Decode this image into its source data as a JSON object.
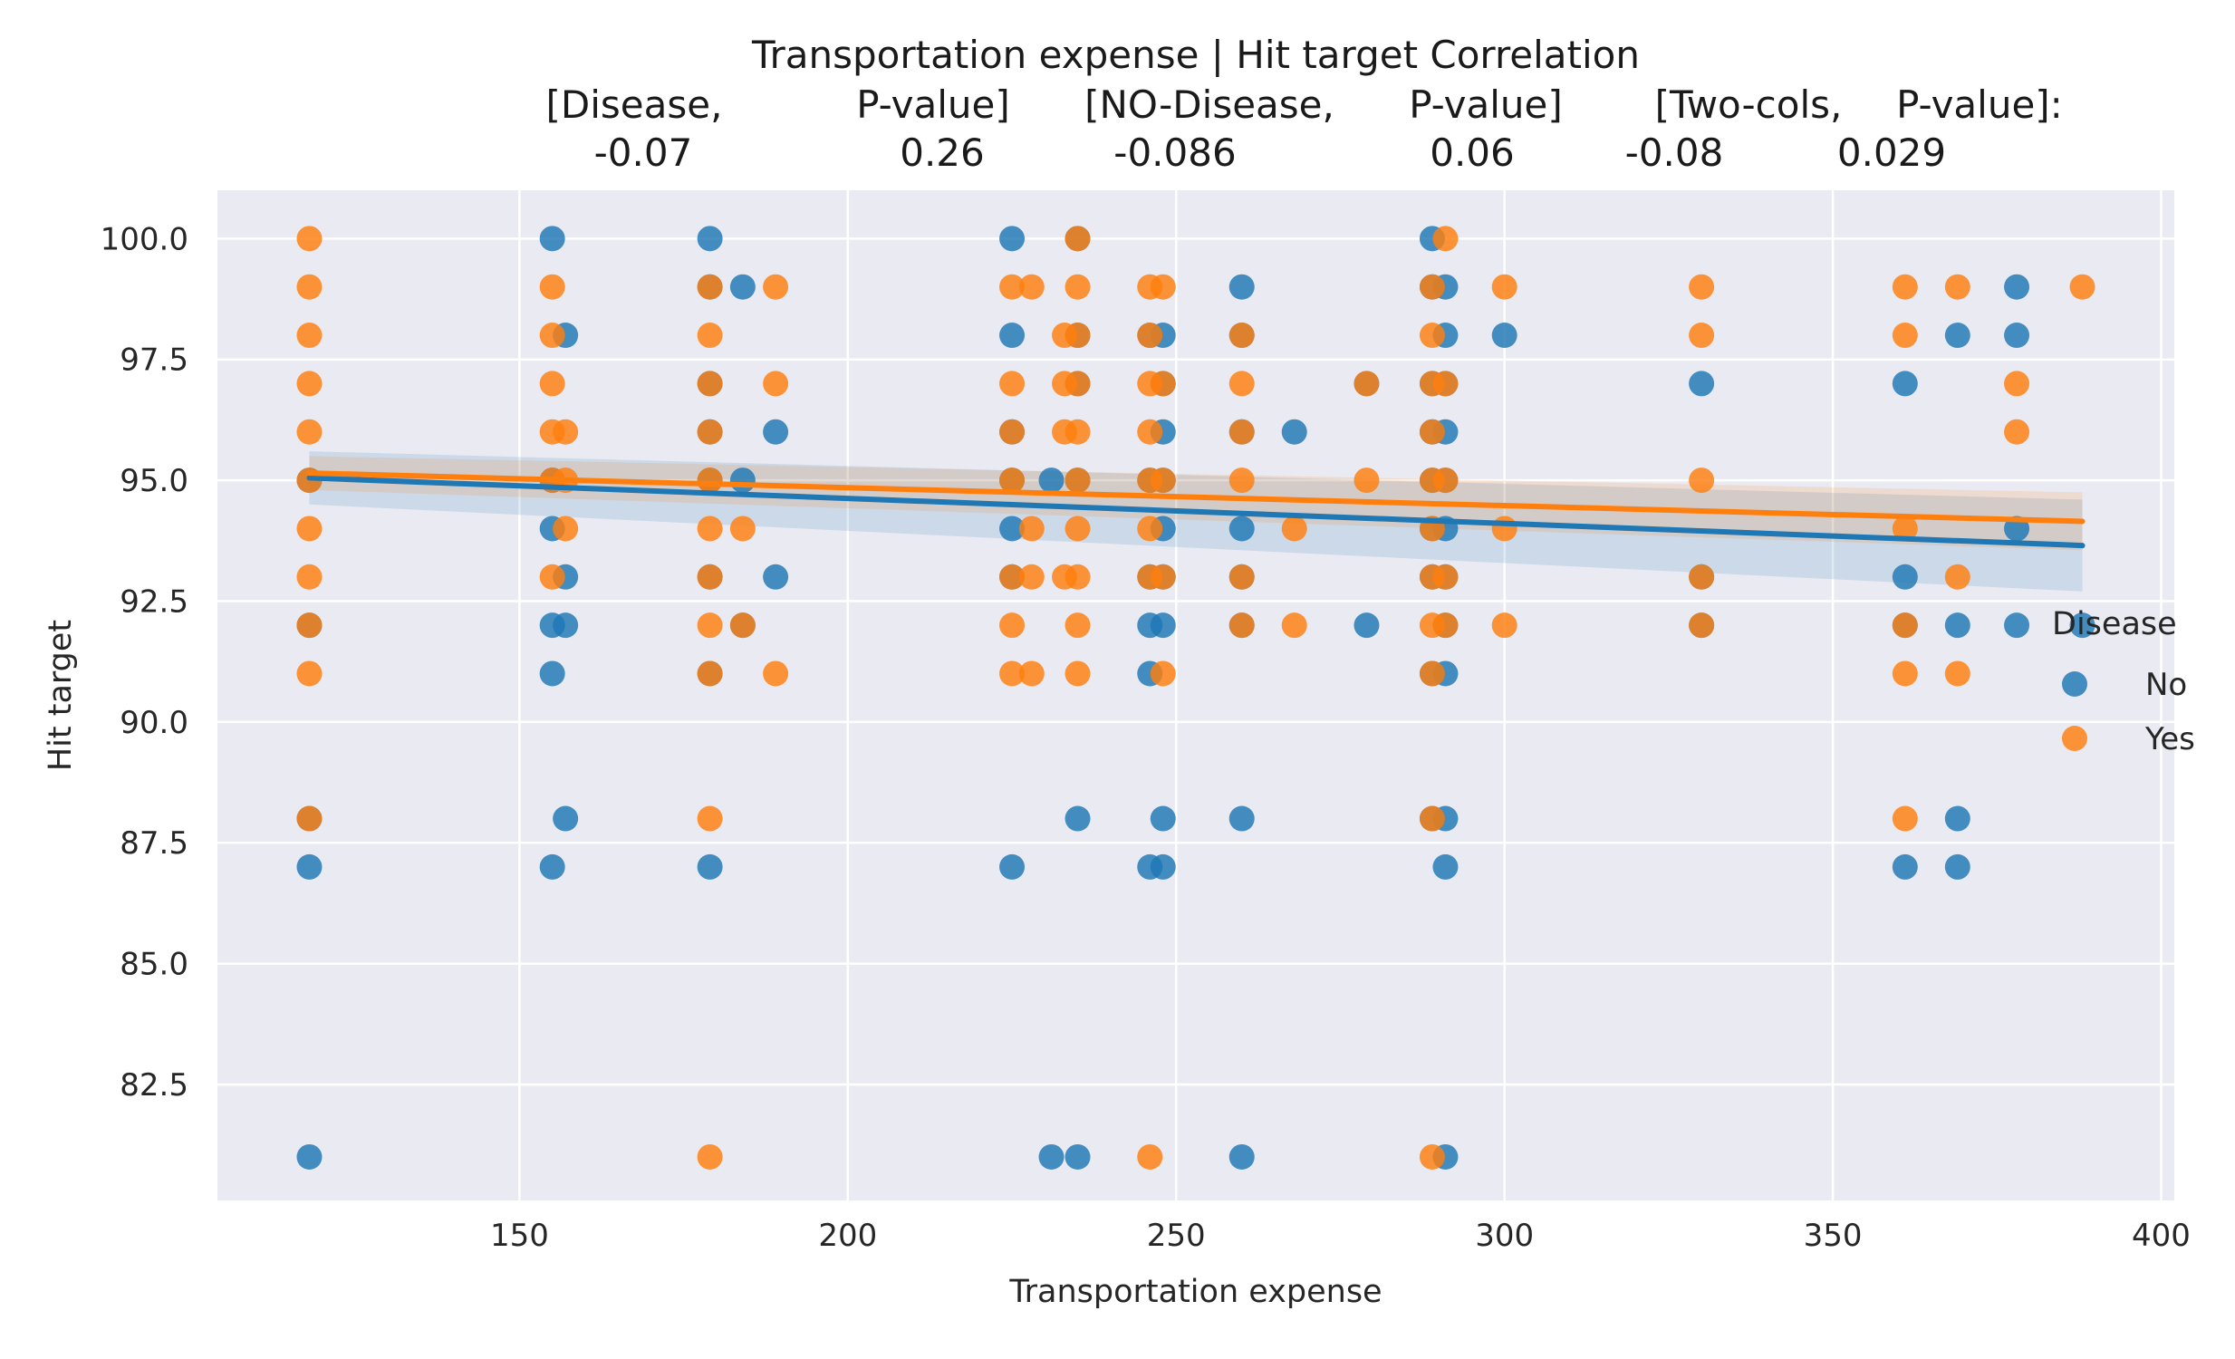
{
  "chart_data": {
    "type": "scatter",
    "title_lines": [
      "Transportation expense | Hit target    Correlation",
      "[Disease,        P-value]    [NO-Disease,      P-value]    [Two-cols,  P-value]:",
      "-0.07            0.26            -0.086            0.06         -0.08          0.029"
    ],
    "title_cells": [
      {
        "row": 1,
        "text": "Transportation expense | Hit target    Correlation"
      },
      {
        "row": 2,
        "text": "[Disease,"
      },
      {
        "row": 2,
        "text": "P-value]"
      },
      {
        "row": 2,
        "text": "[NO-Disease,"
      },
      {
        "row": 2,
        "text": "P-value]"
      },
      {
        "row": 2,
        "text": "[Two-cols,"
      },
      {
        "row": 2,
        "text": "P-value]:"
      },
      {
        "row": 3,
        "text": "-0.07"
      },
      {
        "row": 3,
        "text": "0.26"
      },
      {
        "row": 3,
        "text": "-0.086"
      },
      {
        "row": 3,
        "text": "0.06"
      },
      {
        "row": 3,
        "text": "-0.08"
      },
      {
        "row": 3,
        "text": "0.029"
      }
    ],
    "xlabel": "Transportation expense",
    "ylabel": "Hit target",
    "xlim": [
      104,
      402
    ],
    "ylim": [
      80.1,
      101.0
    ],
    "xticks": [
      150,
      200,
      250,
      300,
      350,
      400
    ],
    "xtick_labels": [
      "150",
      "200",
      "250",
      "300",
      "350",
      "400"
    ],
    "yticks": [
      82.5,
      85.0,
      87.5,
      90.0,
      92.5,
      95.0,
      97.5,
      100.0
    ],
    "ytick_labels": [
      "82.5",
      "85.0",
      "87.5",
      "90.0",
      "92.5",
      "95.0",
      "97.5",
      "100.0"
    ],
    "grid": true,
    "background": "#eaeaf2",
    "legend": {
      "title": "Disease",
      "placement": "right",
      "entries": [
        "No",
        "Yes"
      ]
    },
    "series": [
      {
        "name": "No",
        "color": "#1f77b4",
        "regression": {
          "x": [
            118,
            388
          ],
          "y": [
            95.05,
            93.65
          ],
          "ci_width": [
            1.1,
            1.9
          ]
        },
        "points": [
          [
            118,
            95
          ],
          [
            118,
            92
          ],
          [
            118,
            88
          ],
          [
            118,
            87
          ],
          [
            118,
            81
          ],
          [
            155,
            100
          ],
          [
            155,
            95
          ],
          [
            155,
            94
          ],
          [
            155,
            92
          ],
          [
            155,
            91
          ],
          [
            155,
            87
          ],
          [
            157,
            98
          ],
          [
            157,
            93
          ],
          [
            157,
            92
          ],
          [
            157,
            88
          ],
          [
            179,
            100
          ],
          [
            179,
            99
          ],
          [
            179,
            97
          ],
          [
            179,
            96
          ],
          [
            179,
            95
          ],
          [
            179,
            93
          ],
          [
            179,
            91
          ],
          [
            179,
            87
          ],
          [
            184,
            99
          ],
          [
            184,
            95
          ],
          [
            184,
            92
          ],
          [
            189,
            96
          ],
          [
            189,
            93
          ],
          [
            225,
            100
          ],
          [
            225,
            98
          ],
          [
            225,
            96
          ],
          [
            225,
            95
          ],
          [
            225,
            94
          ],
          [
            225,
            93
          ],
          [
            225,
            87
          ],
          [
            231,
            95
          ],
          [
            231,
            81
          ],
          [
            235,
            100
          ],
          [
            235,
            98
          ],
          [
            235,
            97
          ],
          [
            235,
            95
          ],
          [
            235,
            88
          ],
          [
            235,
            81
          ],
          [
            246,
            98
          ],
          [
            246,
            95
          ],
          [
            246,
            93
          ],
          [
            246,
            92
          ],
          [
            246,
            91
          ],
          [
            246,
            87
          ],
          [
            248,
            98
          ],
          [
            248,
            97
          ],
          [
            248,
            96
          ],
          [
            248,
            95
          ],
          [
            248,
            94
          ],
          [
            248,
            93
          ],
          [
            248,
            92
          ],
          [
            248,
            88
          ],
          [
            248,
            87
          ],
          [
            260,
            99
          ],
          [
            260,
            98
          ],
          [
            260,
            96
          ],
          [
            260,
            94
          ],
          [
            260,
            93
          ],
          [
            260,
            92
          ],
          [
            260,
            88
          ],
          [
            260,
            81
          ],
          [
            268,
            96
          ],
          [
            279,
            97
          ],
          [
            279,
            92
          ],
          [
            289,
            100
          ],
          [
            289,
            99
          ],
          [
            289,
            97
          ],
          [
            289,
            96
          ],
          [
            289,
            95
          ],
          [
            289,
            94
          ],
          [
            289,
            93
          ],
          [
            289,
            91
          ],
          [
            289,
            88
          ],
          [
            291,
            99
          ],
          [
            291,
            98
          ],
          [
            291,
            97
          ],
          [
            291,
            96
          ],
          [
            291,
            95
          ],
          [
            291,
            94
          ],
          [
            291,
            93
          ],
          [
            291,
            92
          ],
          [
            291,
            91
          ],
          [
            291,
            88
          ],
          [
            291,
            87
          ],
          [
            291,
            81
          ],
          [
            300,
            98
          ],
          [
            330,
            97
          ],
          [
            330,
            93
          ],
          [
            330,
            92
          ],
          [
            361,
            97
          ],
          [
            361,
            93
          ],
          [
            361,
            92
          ],
          [
            361,
            87
          ],
          [
            369,
            98
          ],
          [
            369,
            92
          ],
          [
            369,
            88
          ],
          [
            369,
            87
          ],
          [
            378,
            99
          ],
          [
            378,
            98
          ],
          [
            378,
            94
          ],
          [
            378,
            92
          ],
          [
            388,
            92
          ]
        ]
      },
      {
        "name": "Yes",
        "color": "#ff7f0e",
        "regression": {
          "x": [
            118,
            388
          ],
          "y": [
            95.15,
            94.15
          ],
          "ci_width": [
            0.7,
            1.2
          ]
        },
        "points": [
          [
            118,
            100
          ],
          [
            118,
            99
          ],
          [
            118,
            98
          ],
          [
            118,
            97
          ],
          [
            118,
            96
          ],
          [
            118,
            95
          ],
          [
            118,
            94
          ],
          [
            118,
            93
          ],
          [
            118,
            92
          ],
          [
            118,
            91
          ],
          [
            118,
            88
          ],
          [
            155,
            99
          ],
          [
            155,
            98
          ],
          [
            155,
            97
          ],
          [
            155,
            96
          ],
          [
            155,
            95
          ],
          [
            155,
            93
          ],
          [
            157,
            96
          ],
          [
            157,
            95
          ],
          [
            157,
            94
          ],
          [
            179,
            99
          ],
          [
            179,
            98
          ],
          [
            179,
            97
          ],
          [
            179,
            96
          ],
          [
            179,
            95
          ],
          [
            179,
            94
          ],
          [
            179,
            93
          ],
          [
            179,
            92
          ],
          [
            179,
            91
          ],
          [
            179,
            88
          ],
          [
            179,
            81
          ],
          [
            184,
            94
          ],
          [
            184,
            92
          ],
          [
            189,
            99
          ],
          [
            189,
            97
          ],
          [
            189,
            91
          ],
          [
            225,
            99
          ],
          [
            225,
            97
          ],
          [
            225,
            96
          ],
          [
            225,
            95
          ],
          [
            225,
            93
          ],
          [
            225,
            92
          ],
          [
            225,
            91
          ],
          [
            228,
            99
          ],
          [
            228,
            94
          ],
          [
            228,
            93
          ],
          [
            228,
            91
          ],
          [
            233,
            98
          ],
          [
            233,
            97
          ],
          [
            233,
            96
          ],
          [
            233,
            93
          ],
          [
            235,
            100
          ],
          [
            235,
            99
          ],
          [
            235,
            98
          ],
          [
            235,
            97
          ],
          [
            235,
            96
          ],
          [
            235,
            95
          ],
          [
            235,
            94
          ],
          [
            235,
            93
          ],
          [
            235,
            92
          ],
          [
            235,
            91
          ],
          [
            246,
            99
          ],
          [
            246,
            98
          ],
          [
            246,
            97
          ],
          [
            246,
            96
          ],
          [
            246,
            95
          ],
          [
            246,
            94
          ],
          [
            246,
            93
          ],
          [
            246,
            81
          ],
          [
            248,
            99
          ],
          [
            248,
            97
          ],
          [
            248,
            95
          ],
          [
            248,
            93
          ],
          [
            248,
            91
          ],
          [
            260,
            98
          ],
          [
            260,
            97
          ],
          [
            260,
            96
          ],
          [
            260,
            95
          ],
          [
            260,
            93
          ],
          [
            260,
            92
          ],
          [
            268,
            94
          ],
          [
            268,
            92
          ],
          [
            279,
            97
          ],
          [
            279,
            95
          ],
          [
            289,
            99
          ],
          [
            289,
            98
          ],
          [
            289,
            97
          ],
          [
            289,
            96
          ],
          [
            289,
            95
          ],
          [
            289,
            94
          ],
          [
            289,
            93
          ],
          [
            289,
            92
          ],
          [
            289,
            91
          ],
          [
            289,
            88
          ],
          [
            289,
            81
          ],
          [
            291,
            100
          ],
          [
            291,
            97
          ],
          [
            291,
            95
          ],
          [
            291,
            93
          ],
          [
            291,
            92
          ],
          [
            300,
            99
          ],
          [
            300,
            94
          ],
          [
            300,
            92
          ],
          [
            330,
            99
          ],
          [
            330,
            98
          ],
          [
            330,
            95
          ],
          [
            330,
            93
          ],
          [
            330,
            92
          ],
          [
            361,
            99
          ],
          [
            361,
            98
          ],
          [
            361,
            94
          ],
          [
            361,
            92
          ],
          [
            361,
            91
          ],
          [
            361,
            88
          ],
          [
            369,
            99
          ],
          [
            369,
            93
          ],
          [
            369,
            91
          ],
          [
            378,
            97
          ],
          [
            378,
            96
          ],
          [
            388,
            99
          ]
        ]
      }
    ]
  }
}
